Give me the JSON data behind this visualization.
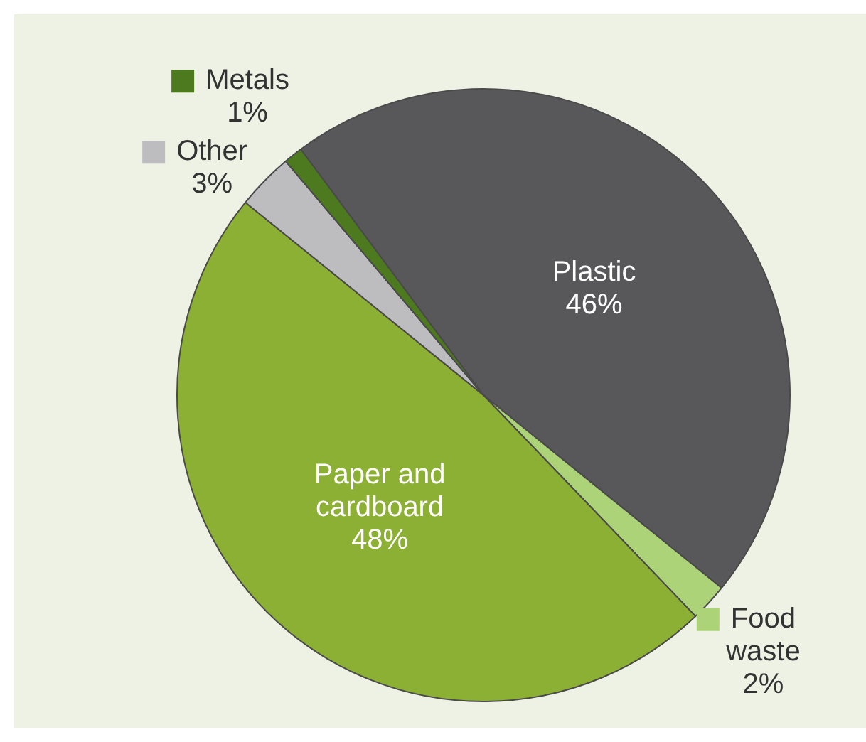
{
  "chart_data": {
    "type": "pie",
    "categories": [
      "Plastic",
      "Food waste",
      "Paper and cardboard",
      "Other",
      "Metals"
    ],
    "values": [
      46,
      2,
      48,
      3,
      1
    ],
    "value_labels": [
      "46%",
      "2%",
      "48%",
      "3%",
      "1%"
    ],
    "colors": [
      "#58585a",
      "#add378",
      "#8bb033",
      "#bdbdc0",
      "#4d7a1f"
    ],
    "legend": "left"
  }
}
